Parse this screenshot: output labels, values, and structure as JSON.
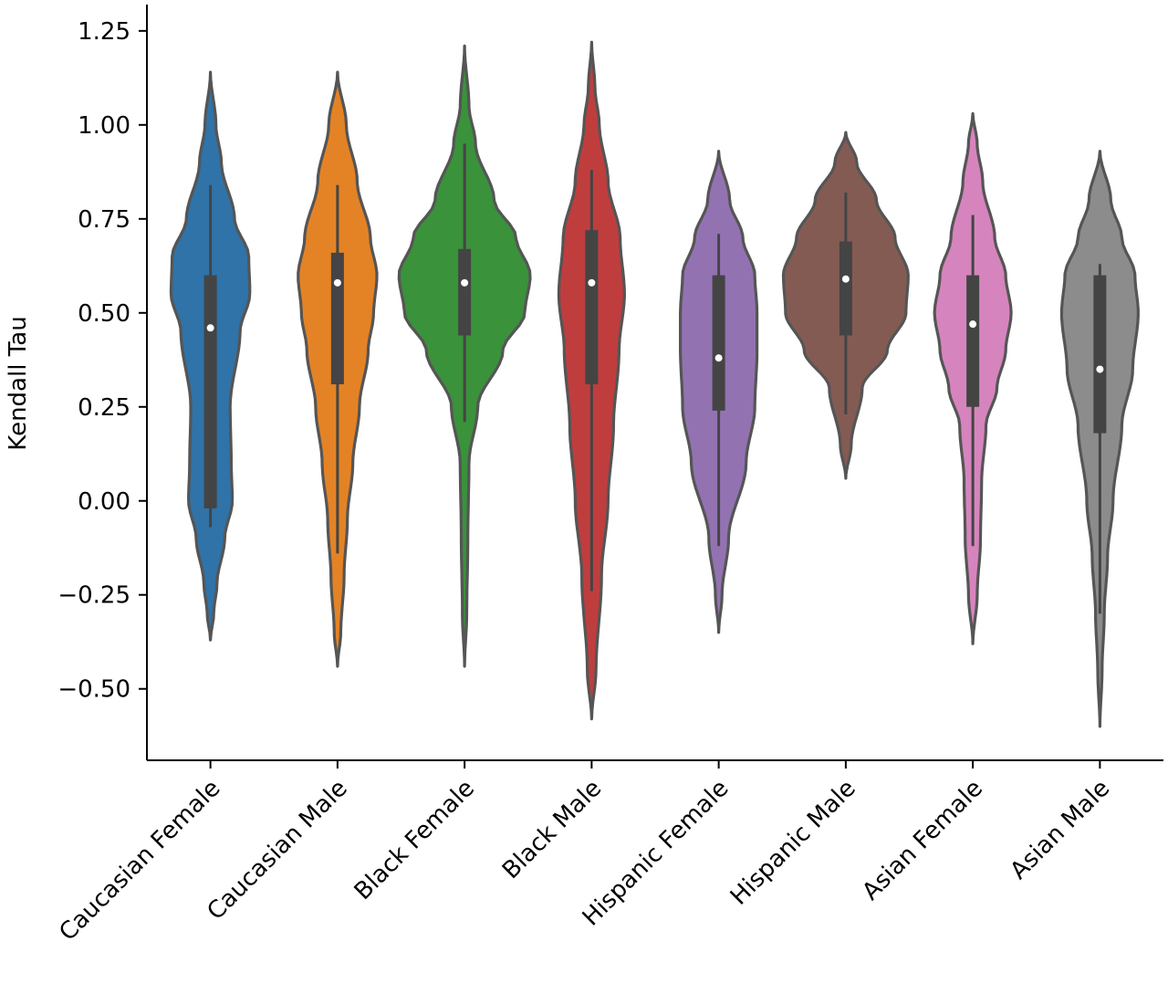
{
  "chart_data": {
    "type": "violin",
    "ylabel": "Kendall Tau",
    "xlabel": "",
    "title": "",
    "ylim": [
      -0.69,
      1.32
    ],
    "yticks": [
      1.25,
      1.0,
      0.75,
      0.5,
      0.25,
      0.0,
      -0.25,
      -0.5
    ],
    "ytick_labels": [
      "1.25",
      "1.00",
      "0.75",
      "0.50",
      "0.25",
      "0.00",
      "−0.25",
      "−0.50"
    ],
    "grid": false,
    "categories": [
      "Caucasian Female",
      "Caucasian Male",
      "Black Female",
      "Black Male",
      "Hispanic Female",
      "Hispanic Male",
      "Asian Female",
      "Asian Male"
    ],
    "series": [
      {
        "color": "#2f73a8",
        "violin_min": -0.37,
        "violin_max": 1.14,
        "profile": [
          [
            -0.37,
            0
          ],
          [
            -0.3,
            0.03
          ],
          [
            -0.22,
            0.06
          ],
          [
            -0.1,
            0.13
          ],
          [
            0.0,
            0.2
          ],
          [
            0.1,
            0.19
          ],
          [
            0.25,
            0.18
          ],
          [
            0.45,
            0.27
          ],
          [
            0.55,
            0.36
          ],
          [
            0.65,
            0.35
          ],
          [
            0.75,
            0.22
          ],
          [
            0.9,
            0.1
          ],
          [
            1.0,
            0.05
          ],
          [
            1.14,
            0
          ]
        ],
        "whisker_low": -0.07,
        "q1": -0.02,
        "median": 0.46,
        "q3": 0.6,
        "whisker_high": 0.84
      },
      {
        "color": "#e48325",
        "violin_min": -0.44,
        "violin_max": 1.14,
        "profile": [
          [
            -0.44,
            0
          ],
          [
            -0.35,
            0.03
          ],
          [
            -0.2,
            0.06
          ],
          [
            -0.05,
            0.09
          ],
          [
            0.1,
            0.14
          ],
          [
            0.25,
            0.2
          ],
          [
            0.4,
            0.28
          ],
          [
            0.5,
            0.33
          ],
          [
            0.6,
            0.36
          ],
          [
            0.7,
            0.3
          ],
          [
            0.85,
            0.18
          ],
          [
            1.0,
            0.08
          ],
          [
            1.14,
            0
          ]
        ],
        "whisker_low": -0.14,
        "q1": 0.31,
        "median": 0.58,
        "q3": 0.66,
        "whisker_high": 0.84
      },
      {
        "color": "#3a923a",
        "violin_min": -0.44,
        "violin_max": 1.21,
        "profile": [
          [
            -0.44,
            0
          ],
          [
            -0.3,
            0.02
          ],
          [
            -0.1,
            0.03
          ],
          [
            0.1,
            0.04
          ],
          [
            0.25,
            0.12
          ],
          [
            0.4,
            0.35
          ],
          [
            0.5,
            0.55
          ],
          [
            0.6,
            0.6
          ],
          [
            0.7,
            0.47
          ],
          [
            0.8,
            0.27
          ],
          [
            0.95,
            0.1
          ],
          [
            1.05,
            0.04
          ],
          [
            1.21,
            0
          ]
        ],
        "whisker_low": 0.21,
        "q1": 0.44,
        "median": 0.58,
        "q3": 0.67,
        "whisker_high": 0.95
      },
      {
        "color": "#c03d3e",
        "violin_min": -0.58,
        "violin_max": 1.22,
        "profile": [
          [
            -0.58,
            0
          ],
          [
            -0.45,
            0.04
          ],
          [
            -0.2,
            0.09
          ],
          [
            0.0,
            0.15
          ],
          [
            0.2,
            0.2
          ],
          [
            0.4,
            0.25
          ],
          [
            0.55,
            0.3
          ],
          [
            0.7,
            0.26
          ],
          [
            0.85,
            0.15
          ],
          [
            1.0,
            0.07
          ],
          [
            1.1,
            0.03
          ],
          [
            1.22,
            0
          ]
        ],
        "whisker_low": -0.24,
        "q1": 0.31,
        "median": 0.58,
        "q3": 0.72,
        "whisker_high": 0.88
      },
      {
        "color": "#9372b2",
        "violin_min": -0.35,
        "violin_max": 0.93,
        "profile": [
          [
            -0.35,
            0
          ],
          [
            -0.25,
            0.03
          ],
          [
            -0.1,
            0.09
          ],
          [
            0.1,
            0.25
          ],
          [
            0.25,
            0.33
          ],
          [
            0.4,
            0.35
          ],
          [
            0.5,
            0.35
          ],
          [
            0.6,
            0.33
          ],
          [
            0.7,
            0.22
          ],
          [
            0.8,
            0.1
          ],
          [
            0.93,
            0
          ]
        ],
        "whisker_low": -0.12,
        "q1": 0.24,
        "median": 0.38,
        "q3": 0.6,
        "whisker_high": 0.71
      },
      {
        "color": "#845b53",
        "violin_min": 0.06,
        "violin_max": 0.98,
        "profile": [
          [
            0.06,
            0
          ],
          [
            0.15,
            0.05
          ],
          [
            0.3,
            0.15
          ],
          [
            0.4,
            0.38
          ],
          [
            0.5,
            0.55
          ],
          [
            0.6,
            0.57
          ],
          [
            0.7,
            0.45
          ],
          [
            0.8,
            0.28
          ],
          [
            0.9,
            0.1
          ],
          [
            0.98,
            0
          ]
        ],
        "whisker_low": 0.23,
        "q1": 0.44,
        "median": 0.59,
        "q3": 0.69,
        "whisker_high": 0.82
      },
      {
        "color": "#d684bd",
        "violin_min": -0.38,
        "violin_max": 1.03,
        "profile": [
          [
            -0.38,
            0
          ],
          [
            -0.25,
            0.04
          ],
          [
            -0.1,
            0.07
          ],
          [
            0.05,
            0.08
          ],
          [
            0.2,
            0.12
          ],
          [
            0.3,
            0.22
          ],
          [
            0.4,
            0.3
          ],
          [
            0.5,
            0.35
          ],
          [
            0.6,
            0.3
          ],
          [
            0.7,
            0.2
          ],
          [
            0.85,
            0.09
          ],
          [
            0.95,
            0.04
          ],
          [
            1.03,
            0
          ]
        ],
        "whisker_low": -0.12,
        "q1": 0.25,
        "median": 0.47,
        "q3": 0.6,
        "whisker_high": 0.76
      },
      {
        "color": "#8c8c8c",
        "violin_min": -0.6,
        "violin_max": 0.93,
        "profile": [
          [
            -0.6,
            0
          ],
          [
            -0.45,
            0.02
          ],
          [
            -0.3,
            0.04
          ],
          [
            -0.15,
            0.07
          ],
          [
            0.0,
            0.12
          ],
          [
            0.2,
            0.2
          ],
          [
            0.35,
            0.3
          ],
          [
            0.5,
            0.35
          ],
          [
            0.6,
            0.32
          ],
          [
            0.7,
            0.2
          ],
          [
            0.8,
            0.1
          ],
          [
            0.93,
            0
          ]
        ],
        "whisker_low": -0.3,
        "q1": 0.18,
        "median": 0.35,
        "q3": 0.6,
        "whisker_high": 0.63
      }
    ]
  }
}
